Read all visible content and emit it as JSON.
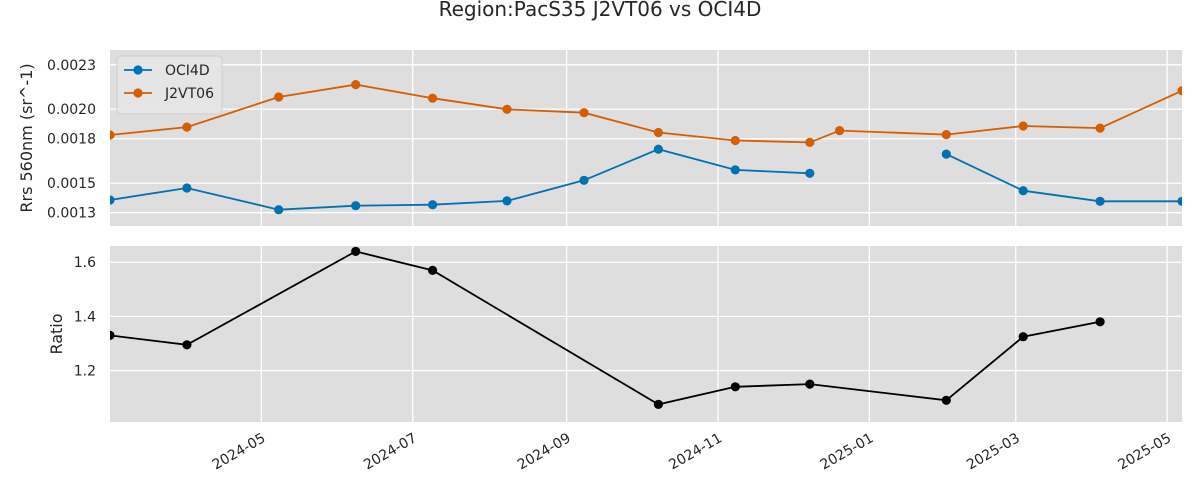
{
  "chart_data": {
    "type": "line",
    "title": "Region:PacS35 J2VT06 vs OCI4D",
    "x_tick_labels": [
      "2024-05",
      "2024-07",
      "2024-09",
      "2024-11",
      "2025-01",
      "2025-03",
      "2025-05"
    ],
    "x_ticks": [
      "2024-05-01",
      "2024-07-01",
      "2024-09-01",
      "2024-11-01",
      "2025-01-01",
      "2025-03-01",
      "2025-05-01"
    ],
    "xlim": [
      "2024-03-01",
      "2025-05-07"
    ],
    "grid": true,
    "legend_position": "top-left",
    "panels": [
      {
        "ylabel": "Rrs 560nm (sr^-1)",
        "ylim": [
          0.00121,
          0.0024
        ],
        "yticks": [
          0.0013,
          0.0015,
          0.0018,
          0.002,
          0.0023
        ],
        "ytick_labels": [
          "0.0013",
          "0.0015",
          "0.0018",
          "0.0020",
          "0.0023"
        ],
        "series": [
          {
            "name": "OCI4D",
            "color": "#0072b2",
            "points": [
              [
                "2024-03-01",
                0.001386
              ],
              [
                "2024-04-01",
                0.001467
              ],
              [
                "2024-05-08",
                0.00132
              ],
              [
                "2024-06-08",
                0.001347
              ],
              [
                "2024-07-09",
                0.001354
              ],
              [
                "2024-08-08",
                0.00138
              ],
              [
                "2024-09-08",
                0.001519
              ],
              [
                "2024-10-08",
                0.001729
              ],
              [
                "2024-11-08",
                0.001589
              ],
              [
                "2024-12-08",
                0.001566
              ],
              [
                "2025-01-08",
                null
              ],
              [
                "2025-02-01",
                0.001696
              ],
              [
                "2025-03-04",
                0.001449
              ],
              [
                "2025-04-04",
                0.001377
              ],
              [
                "2025-05-07",
                0.001377
              ]
            ]
          },
          {
            "name": "J2VT06",
            "color": "#d55e00",
            "points": [
              [
                "2024-03-01",
                0.001825
              ],
              [
                "2024-04-01",
                0.001879
              ],
              [
                "2024-05-08",
                0.002082
              ],
              [
                "2024-06-08",
                0.002166
              ],
              [
                "2024-07-09",
                0.002074
              ],
              [
                "2024-08-08",
                0.001999
              ],
              [
                "2024-09-08",
                0.001976
              ],
              [
                "2024-10-08",
                0.001842
              ],
              [
                "2024-11-08",
                0.001788
              ],
              [
                "2024-12-08",
                0.001775
              ],
              [
                "2024-12-20",
                0.001855
              ],
              [
                "2025-02-01",
                0.001828
              ],
              [
                "2025-03-04",
                0.001886
              ],
              [
                "2025-04-04",
                0.001872
              ],
              [
                "2025-05-07",
                0.002125
              ]
            ]
          }
        ]
      },
      {
        "ylabel": "Ratio",
        "ylim": [
          1.01,
          1.66
        ],
        "yticks": [
          1.2,
          1.4,
          1.6
        ],
        "ytick_labels": [
          "1.2",
          "1.4",
          "1.6"
        ],
        "series": [
          {
            "name": "",
            "color": "#000000",
            "points": [
              [
                "2024-03-01",
                1.33
              ],
              [
                "2024-04-01",
                1.295
              ],
              [
                "2024-06-08",
                1.64
              ],
              [
                "2024-07-09",
                1.57
              ],
              [
                "2024-10-08",
                1.075
              ],
              [
                "2024-11-08",
                1.14
              ],
              [
                "2024-12-08",
                1.15
              ],
              [
                "2025-02-01",
                1.09
              ],
              [
                "2025-03-04",
                1.325
              ],
              [
                "2025-04-04",
                1.38
              ]
            ]
          }
        ]
      }
    ]
  }
}
